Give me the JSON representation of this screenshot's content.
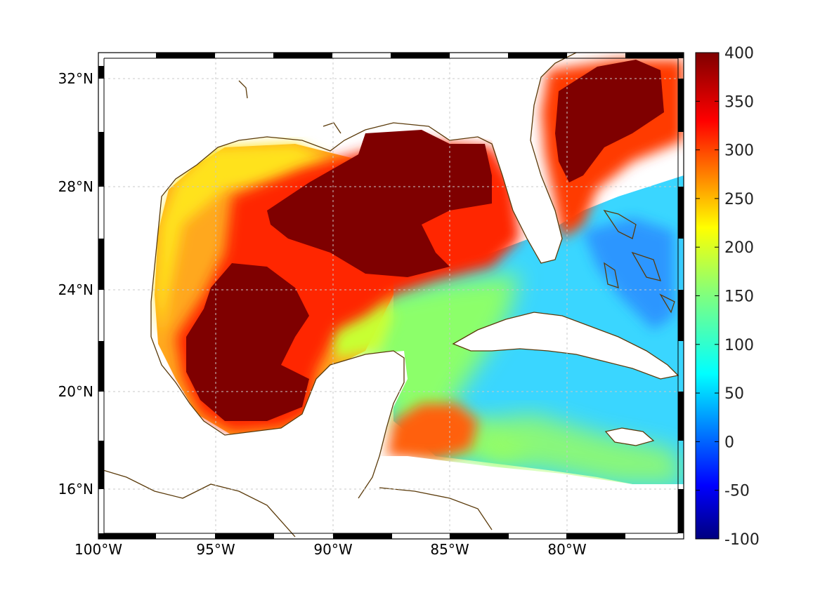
{
  "map": {
    "lon_ticks": [
      "100°W",
      "95°W",
      "90°W",
      "85°W",
      "80°W"
    ],
    "lat_ticks": [
      "32°N",
      "28°N",
      "24°N",
      "20°N",
      "16°N"
    ],
    "colorbar": {
      "ticks": [
        "400",
        "350",
        "300",
        "250",
        "200",
        "150",
        "100",
        "50",
        "0",
        "-50",
        "-100"
      ],
      "min": -100,
      "max": 400
    },
    "coastline_color": "#5a3a0a",
    "colormap": "jet"
  }
}
